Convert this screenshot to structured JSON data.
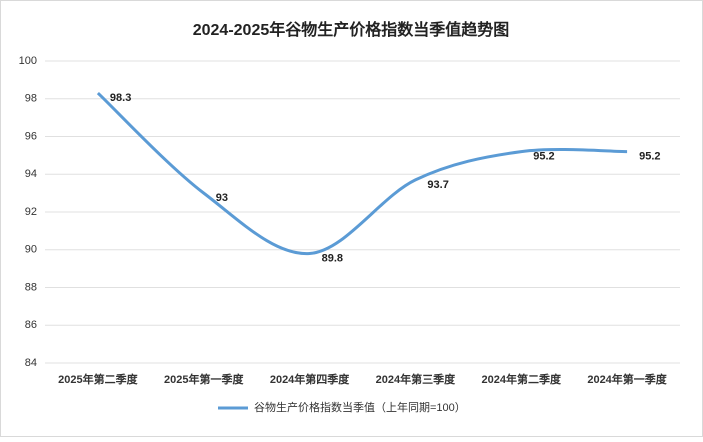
{
  "chart_data": {
    "type": "line",
    "title": "2024-2025年谷物生产价格指数当季值趋势图",
    "categories": [
      "2025年第二季度",
      "2025年第一季度",
      "2024年第四季度",
      "2024年第三季度",
      "2024年第二季度",
      "2024年第一季度"
    ],
    "series": [
      {
        "name": "谷物生产价格指数当季值（上年同期=100）",
        "color": "#5b9bd5",
        "values": [
          98.3,
          93,
          89.8,
          93.7,
          95.2,
          95.2
        ]
      }
    ],
    "ylim": [
      84,
      100
    ],
    "yticks": [
      84,
      86,
      88,
      90,
      92,
      94,
      96,
      98,
      100
    ],
    "grid": true,
    "smooth": true,
    "legend": "bottom"
  }
}
